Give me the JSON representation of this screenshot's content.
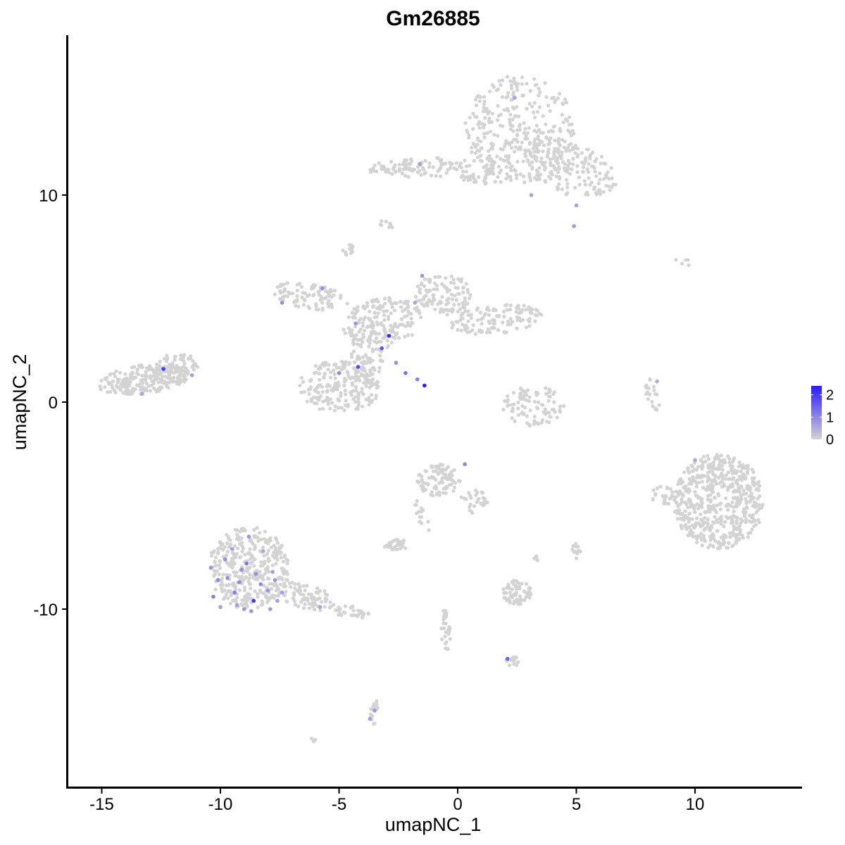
{
  "chart_data": {
    "type": "scatter",
    "title": "Gm26885",
    "xlabel": "umapNC_1",
    "ylabel": "umapNC_2",
    "xlim": [
      -16.5,
      14.5
    ],
    "ylim": [
      -18.5,
      17.5
    ],
    "x_ticks": [
      -15,
      -10,
      -5,
      0,
      5,
      10
    ],
    "x_tick_labels": [
      "-15",
      "-10",
      "-5",
      "0",
      "5",
      "10"
    ],
    "y_ticks": [
      -10,
      0,
      10
    ],
    "y_tick_labels": [
      "-10",
      "0",
      "10"
    ],
    "grid": false,
    "legend_position": "right",
    "color_scale": {
      "low_color": "#d3d3d3",
      "high_color": "#2a1cff",
      "min": 0,
      "max": 2.4,
      "ticks": [
        0,
        1,
        2
      ],
      "tick_labels": [
        "0",
        "1",
        "2"
      ]
    },
    "background_cluster_color": "#d3d3d3",
    "clusters": [
      {
        "cx": 2.7,
        "cy": 13.2,
        "rx": 2.4,
        "ry": 2.6,
        "n": 320,
        "rot": 0
      },
      {
        "cx": 4.8,
        "cy": 11.2,
        "rx": 2.0,
        "ry": 1.2,
        "n": 170,
        "rot": -0.3
      },
      {
        "cx": -1.7,
        "cy": 11.3,
        "rx": 2.1,
        "ry": 0.5,
        "n": 90,
        "rot": 0.05
      },
      {
        "cx": 1.2,
        "cy": 11.2,
        "rx": 1.4,
        "ry": 0.7,
        "n": 60,
        "rot": 0
      },
      {
        "cx": -3.0,
        "cy": 8.6,
        "rx": 0.3,
        "ry": 0.3,
        "n": 8,
        "rot": 0
      },
      {
        "cx": -4.6,
        "cy": 7.3,
        "rx": 0.3,
        "ry": 0.3,
        "n": 14,
        "rot": 0
      },
      {
        "cx": -6.2,
        "cy": 5.1,
        "rx": 1.6,
        "ry": 0.6,
        "n": 90,
        "rot": -0.2
      },
      {
        "cx": -3.2,
        "cy": 3.8,
        "rx": 1.7,
        "ry": 1.2,
        "n": 180,
        "rot": 0.3
      },
      {
        "cx": -0.6,
        "cy": 5.2,
        "rx": 1.2,
        "ry": 1.0,
        "n": 110,
        "rot": 0
      },
      {
        "cx": 1.6,
        "cy": 4.0,
        "rx": 2.0,
        "ry": 0.7,
        "n": 120,
        "rot": 0.1
      },
      {
        "cx": -5.0,
        "cy": 0.7,
        "rx": 1.7,
        "ry": 1.3,
        "n": 200,
        "rot": 0
      },
      {
        "cx": -3.8,
        "cy": 2.2,
        "rx": 0.7,
        "ry": 1.6,
        "n": 80,
        "rot": 0
      },
      {
        "cx": -13.2,
        "cy": 1.1,
        "rx": 2.0,
        "ry": 0.7,
        "n": 220,
        "rot": 0.15
      },
      {
        "cx": -11.8,
        "cy": 1.7,
        "rx": 0.9,
        "ry": 0.7,
        "n": 60,
        "rot": 0
      },
      {
        "cx": 3.2,
        "cy": -0.2,
        "rx": 1.3,
        "ry": 1.0,
        "n": 90,
        "rot": 0
      },
      {
        "cx": 8.2,
        "cy": 0.3,
        "rx": 0.25,
        "ry": 0.9,
        "n": 22,
        "rot": 0.2
      },
      {
        "cx": 11.0,
        "cy": -4.8,
        "rx": 1.9,
        "ry": 2.3,
        "n": 560,
        "rot": 0
      },
      {
        "cx": 8.7,
        "cy": -4.5,
        "rx": 0.6,
        "ry": 0.5,
        "n": 25,
        "rot": 0
      },
      {
        "cx": -0.8,
        "cy": -3.8,
        "rx": 0.9,
        "ry": 0.8,
        "n": 95,
        "rot": 0
      },
      {
        "cx": 0.7,
        "cy": -4.8,
        "rx": 0.6,
        "ry": 0.6,
        "n": 30,
        "rot": 0
      },
      {
        "cx": -1.5,
        "cy": -5.5,
        "rx": 0.2,
        "ry": 0.9,
        "n": 14,
        "rot": 0.3
      },
      {
        "cx": -8.8,
        "cy": -8.0,
        "rx": 1.7,
        "ry": 2.0,
        "n": 360,
        "rot": 0
      },
      {
        "cx": -6.4,
        "cy": -9.4,
        "rx": 1.3,
        "ry": 0.6,
        "n": 80,
        "rot": -0.3
      },
      {
        "cx": -4.6,
        "cy": -10.1,
        "rx": 0.9,
        "ry": 0.3,
        "n": 35,
        "rot": -0.2
      },
      {
        "cx": -2.6,
        "cy": -6.9,
        "rx": 0.5,
        "ry": 0.3,
        "n": 35,
        "rot": 0
      },
      {
        "cx": 2.5,
        "cy": -9.2,
        "rx": 0.6,
        "ry": 0.6,
        "n": 70,
        "rot": 0
      },
      {
        "cx": 3.3,
        "cy": -7.5,
        "rx": 0.1,
        "ry": 0.2,
        "n": 6,
        "rot": 0
      },
      {
        "cx": 5.0,
        "cy": -7.2,
        "rx": 0.2,
        "ry": 0.4,
        "n": 12,
        "rot": 0
      },
      {
        "cx": -0.5,
        "cy": -11.0,
        "rx": 0.2,
        "ry": 1.1,
        "n": 30,
        "rot": 0
      },
      {
        "cx": 2.3,
        "cy": -12.5,
        "rx": 0.3,
        "ry": 0.25,
        "n": 14,
        "rot": 0
      },
      {
        "cx": -3.5,
        "cy": -15.0,
        "rx": 0.2,
        "ry": 0.6,
        "n": 18,
        "rot": 0
      },
      {
        "cx": -6.1,
        "cy": -16.3,
        "rx": 0.1,
        "ry": 0.1,
        "n": 3,
        "rot": 0
      },
      {
        "cx": 9.6,
        "cy": 6.8,
        "rx": 0.6,
        "ry": 0.2,
        "n": 5,
        "rot": 0
      }
    ],
    "expressed_points": [
      {
        "x": -2.9,
        "y": 3.2,
        "v": 2.2
      },
      {
        "x": -1.4,
        "y": 0.8,
        "v": 2.4
      },
      {
        "x": -4.2,
        "y": 1.7,
        "v": 1.8
      },
      {
        "x": -3.2,
        "y": 2.6,
        "v": 1.7
      },
      {
        "x": -12.4,
        "y": 1.6,
        "v": 2.0
      },
      {
        "x": -2.2,
        "y": 1.4,
        "v": 1.3
      },
      {
        "x": -1.7,
        "y": 1.1,
        "v": 1.1
      },
      {
        "x": -2.6,
        "y": 1.9,
        "v": 0.9
      },
      {
        "x": -5.0,
        "y": 1.4,
        "v": 1.0
      },
      {
        "x": -7.4,
        "y": 4.8,
        "v": 0.9
      },
      {
        "x": -5.7,
        "y": 5.5,
        "v": 0.9
      },
      {
        "x": -1.5,
        "y": 6.1,
        "v": 0.8
      },
      {
        "x": -1.8,
        "y": 4.8,
        "v": 0.6
      },
      {
        "x": -4.3,
        "y": 3.8,
        "v": 0.8
      },
      {
        "x": -11.2,
        "y": 1.3,
        "v": 0.7
      },
      {
        "x": -13.3,
        "y": 0.4,
        "v": 0.6
      },
      {
        "x": -8.6,
        "y": -9.6,
        "v": 2.1
      },
      {
        "x": -8.9,
        "y": -7.8,
        "v": 1.2
      },
      {
        "x": -9.4,
        "y": -9.2,
        "v": 1.1
      },
      {
        "x": -9.7,
        "y": -8.5,
        "v": 0.9
      },
      {
        "x": -8.3,
        "y": -8.8,
        "v": 1.0
      },
      {
        "x": -7.9,
        "y": -10.0,
        "v": 0.8
      },
      {
        "x": -9.1,
        "y": -8.1,
        "v": 0.9
      },
      {
        "x": -10.1,
        "y": -8.6,
        "v": 1.0
      },
      {
        "x": -8.0,
        "y": -9.1,
        "v": 0.8
      },
      {
        "x": -7.6,
        "y": -9.6,
        "v": 0.7
      },
      {
        "x": -8.5,
        "y": -8.3,
        "v": 0.9
      },
      {
        "x": -9.3,
        "y": -9.8,
        "v": 0.7
      },
      {
        "x": -9.8,
        "y": -7.6,
        "v": 0.9
      },
      {
        "x": -10.3,
        "y": -9.4,
        "v": 1.1
      },
      {
        "x": -8.8,
        "y": -6.5,
        "v": 0.8
      },
      {
        "x": -7.8,
        "y": -8.2,
        "v": 0.7
      },
      {
        "x": -9.0,
        "y": -10.0,
        "v": 0.8
      },
      {
        "x": -10.4,
        "y": -8.0,
        "v": 0.9
      },
      {
        "x": -7.4,
        "y": -9.2,
        "v": 0.7
      },
      {
        "x": -9.5,
        "y": -7.1,
        "v": 0.7
      },
      {
        "x": -8.2,
        "y": -7.2,
        "v": 0.6
      },
      {
        "x": -8.7,
        "y": -10.1,
        "v": 0.8
      },
      {
        "x": -7.7,
        "y": -8.6,
        "v": 0.9
      },
      {
        "x": -10.0,
        "y": -9.9,
        "v": 0.7
      },
      {
        "x": -9.2,
        "y": -8.7,
        "v": 1.0
      },
      {
        "x": -5.8,
        "y": -9.9,
        "v": 0.6
      },
      {
        "x": 0.3,
        "y": -3.0,
        "v": 1.0
      },
      {
        "x": 2.1,
        "y": -12.4,
        "v": 1.5
      },
      {
        "x": -3.5,
        "y": -14.9,
        "v": 0.8
      },
      {
        "x": -3.7,
        "y": -15.3,
        "v": 0.7
      },
      {
        "x": 2.4,
        "y": 14.7,
        "v": 0.6
      },
      {
        "x": -1.6,
        "y": 11.5,
        "v": 0.7
      },
      {
        "x": 3.1,
        "y": 10.0,
        "v": 0.6
      },
      {
        "x": 4.9,
        "y": 8.5,
        "v": 0.7
      },
      {
        "x": 5.0,
        "y": 9.5,
        "v": 0.6
      },
      {
        "x": 10.0,
        "y": -2.8,
        "v": 0.6
      },
      {
        "x": 8.4,
        "y": 1.0,
        "v": 0.5
      }
    ]
  }
}
